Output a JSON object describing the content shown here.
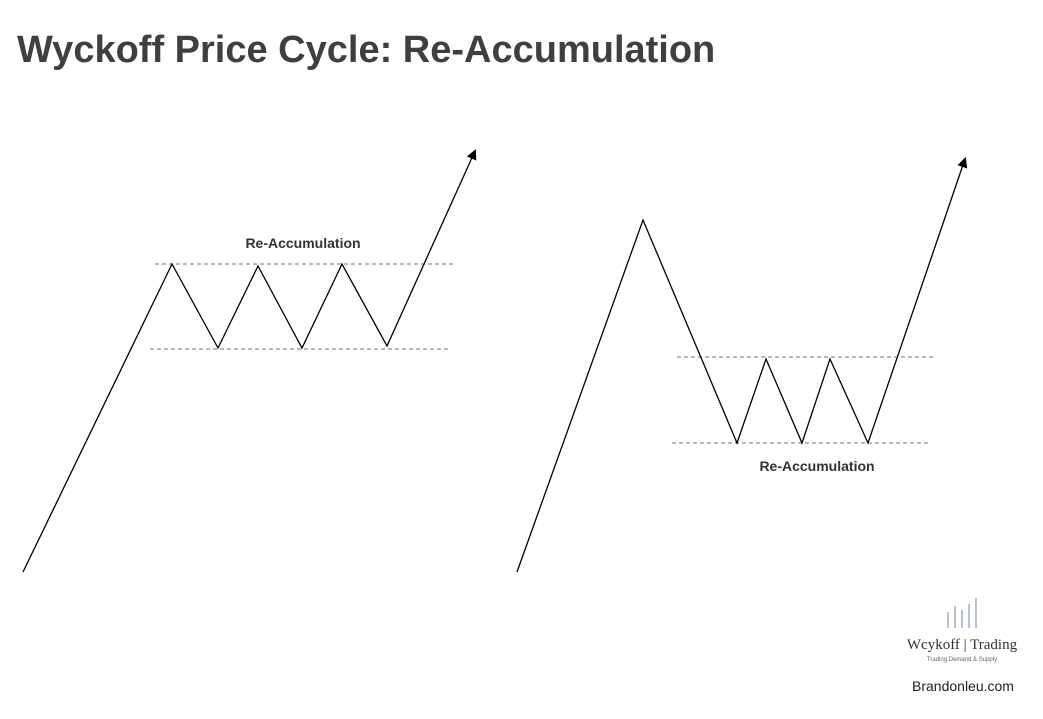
{
  "header": {
    "title": "Wyckoff Price Cycle: Re-Accumulation"
  },
  "diagrams": [
    {
      "label": "Re-Accumulation"
    },
    {
      "label": "Re-Accumulation"
    }
  ],
  "logo": {
    "name": "Wcykoff | Trading",
    "tagline": "Trading Demand & Supply"
  },
  "footer": {
    "website": "Brandonleu.com"
  }
}
